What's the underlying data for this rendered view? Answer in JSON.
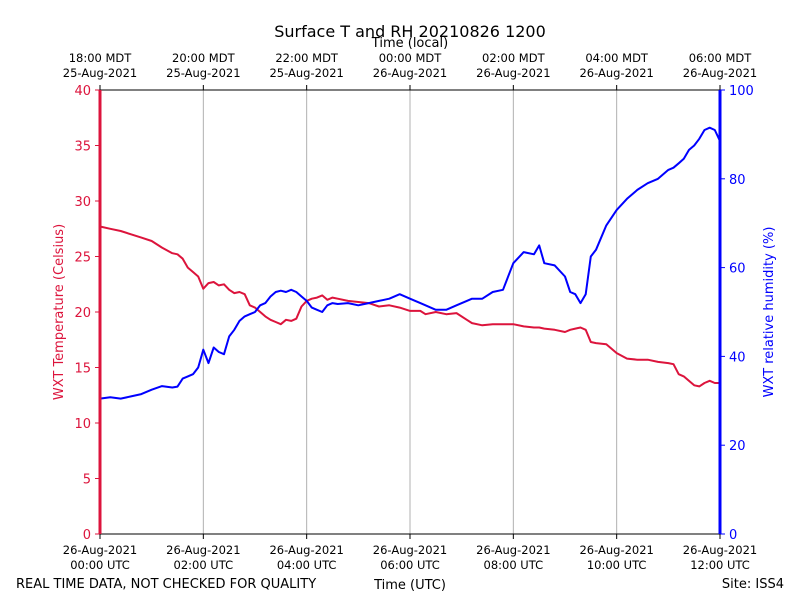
{
  "chart_data": {
    "type": "line",
    "title": "Surface T and RH 20210826 1200",
    "top_axis_title": "Time (local)",
    "xlabel": "Time (UTC)",
    "ylabel_left": "WXT Temperature (Celsius)",
    "ylabel_right": "WXT relative humidity (%)",
    "footer_left": "REAL TIME DATA, NOT CHECKED FOR QUALITY",
    "footer_right": "Site: ISS4",
    "x_range_hours": [
      0,
      12
    ],
    "ylim_left": [
      0,
      40
    ],
    "ylim_right": [
      0,
      100
    ],
    "left_ticks": [
      0,
      5,
      10,
      15,
      20,
      25,
      30,
      35,
      40
    ],
    "right_ticks": [
      0,
      20,
      40,
      60,
      80,
      100
    ],
    "bottom_ticks": [
      {
        "hour": 0,
        "line1": "26-Aug-2021",
        "line2": "00:00 UTC"
      },
      {
        "hour": 2,
        "line1": "26-Aug-2021",
        "line2": "02:00 UTC"
      },
      {
        "hour": 4,
        "line1": "26-Aug-2021",
        "line2": "04:00 UTC"
      },
      {
        "hour": 6,
        "line1": "26-Aug-2021",
        "line2": "06:00 UTC"
      },
      {
        "hour": 8,
        "line1": "26-Aug-2021",
        "line2": "08:00 UTC"
      },
      {
        "hour": 10,
        "line1": "26-Aug-2021",
        "line2": "10:00 UTC"
      },
      {
        "hour": 12,
        "line1": "26-Aug-2021",
        "line2": "12:00 UTC"
      }
    ],
    "top_ticks": [
      {
        "hour": 0,
        "line1": "18:00 MDT",
        "line2": "25-Aug-2021"
      },
      {
        "hour": 2,
        "line1": "20:00 MDT",
        "line2": "25-Aug-2021"
      },
      {
        "hour": 4,
        "line1": "22:00 MDT",
        "line2": "25-Aug-2021"
      },
      {
        "hour": 6,
        "line1": "00:00 MDT",
        "line2": "26-Aug-2021"
      },
      {
        "hour": 8,
        "line1": "02:00 MDT",
        "line2": "26-Aug-2021"
      },
      {
        "hour": 10,
        "line1": "04:00 MDT",
        "line2": "26-Aug-2021"
      },
      {
        "hour": 12,
        "line1": "06:00 MDT",
        "line2": "26-Aug-2021"
      }
    ],
    "grid": "vertical",
    "colors": {
      "temperature": "#dc143c",
      "humidity": "#0000ff",
      "grid": "#b0b0b0"
    },
    "series": [
      {
        "name": "WXT Temperature",
        "axis": "left",
        "points": [
          [
            0,
            27.7
          ],
          [
            0.2,
            27.5
          ],
          [
            0.4,
            27.3
          ],
          [
            0.6,
            27.0
          ],
          [
            0.8,
            26.7
          ],
          [
            1.0,
            26.4
          ],
          [
            1.2,
            25.8
          ],
          [
            1.4,
            25.3
          ],
          [
            1.5,
            25.2
          ],
          [
            1.6,
            24.8
          ],
          [
            1.7,
            24.0
          ],
          [
            1.8,
            23.6
          ],
          [
            1.9,
            23.2
          ],
          [
            2.0,
            22.1
          ],
          [
            2.1,
            22.6
          ],
          [
            2.2,
            22.7
          ],
          [
            2.3,
            22.4
          ],
          [
            2.4,
            22.5
          ],
          [
            2.5,
            22.0
          ],
          [
            2.6,
            21.7
          ],
          [
            2.7,
            21.8
          ],
          [
            2.8,
            21.6
          ],
          [
            2.9,
            20.6
          ],
          [
            3.0,
            20.4
          ],
          [
            3.1,
            20.0
          ],
          [
            3.2,
            19.6
          ],
          [
            3.3,
            19.3
          ],
          [
            3.4,
            19.1
          ],
          [
            3.5,
            18.9
          ],
          [
            3.6,
            19.3
          ],
          [
            3.7,
            19.2
          ],
          [
            3.8,
            19.4
          ],
          [
            3.9,
            20.5
          ],
          [
            4.0,
            21.0
          ],
          [
            4.1,
            21.2
          ],
          [
            4.2,
            21.3
          ],
          [
            4.3,
            21.5
          ],
          [
            4.4,
            21.1
          ],
          [
            4.5,
            21.3
          ],
          [
            4.6,
            21.2
          ],
          [
            4.8,
            21.0
          ],
          [
            5.0,
            20.9
          ],
          [
            5.2,
            20.8
          ],
          [
            5.4,
            20.5
          ],
          [
            5.6,
            20.6
          ],
          [
            5.8,
            20.4
          ],
          [
            6.0,
            20.1
          ],
          [
            6.2,
            20.1
          ],
          [
            6.3,
            19.8
          ],
          [
            6.5,
            20.0
          ],
          [
            6.7,
            19.8
          ],
          [
            6.9,
            19.9
          ],
          [
            7.1,
            19.3
          ],
          [
            7.2,
            19.0
          ],
          [
            7.4,
            18.8
          ],
          [
            7.6,
            18.9
          ],
          [
            7.8,
            18.9
          ],
          [
            8.0,
            18.9
          ],
          [
            8.2,
            18.7
          ],
          [
            8.4,
            18.6
          ],
          [
            8.5,
            18.6
          ],
          [
            8.6,
            18.5
          ],
          [
            8.8,
            18.4
          ],
          [
            9.0,
            18.2
          ],
          [
            9.1,
            18.4
          ],
          [
            9.2,
            18.5
          ],
          [
            9.3,
            18.6
          ],
          [
            9.4,
            18.4
          ],
          [
            9.5,
            17.3
          ],
          [
            9.6,
            17.2
          ],
          [
            9.8,
            17.1
          ],
          [
            10.0,
            16.3
          ],
          [
            10.2,
            15.8
          ],
          [
            10.4,
            15.7
          ],
          [
            10.6,
            15.7
          ],
          [
            10.8,
            15.5
          ],
          [
            11.0,
            15.4
          ],
          [
            11.1,
            15.3
          ],
          [
            11.2,
            14.4
          ],
          [
            11.3,
            14.2
          ],
          [
            11.5,
            13.4
          ],
          [
            11.6,
            13.3
          ],
          [
            11.7,
            13.6
          ],
          [
            11.8,
            13.8
          ],
          [
            11.9,
            13.6
          ],
          [
            12.0,
            13.6
          ]
        ]
      },
      {
        "name": "WXT relative humidity",
        "axis": "right",
        "points": [
          [
            0,
            30.5
          ],
          [
            0.2,
            30.8
          ],
          [
            0.4,
            30.5
          ],
          [
            0.6,
            31.0
          ],
          [
            0.8,
            31.5
          ],
          [
            1.0,
            32.5
          ],
          [
            1.2,
            33.3
          ],
          [
            1.4,
            33.0
          ],
          [
            1.5,
            33.2
          ],
          [
            1.6,
            35.0
          ],
          [
            1.7,
            35.5
          ],
          [
            1.8,
            36.0
          ],
          [
            1.9,
            37.5
          ],
          [
            2.0,
            41.5
          ],
          [
            2.1,
            38.5
          ],
          [
            2.2,
            42.0
          ],
          [
            2.3,
            41.0
          ],
          [
            2.4,
            40.5
          ],
          [
            2.5,
            44.5
          ],
          [
            2.6,
            46.0
          ],
          [
            2.7,
            48.0
          ],
          [
            2.8,
            49.0
          ],
          [
            2.9,
            49.5
          ],
          [
            3.0,
            50.0
          ],
          [
            3.1,
            51.5
          ],
          [
            3.2,
            52.0
          ],
          [
            3.3,
            53.5
          ],
          [
            3.4,
            54.5
          ],
          [
            3.5,
            54.8
          ],
          [
            3.6,
            54.5
          ],
          [
            3.7,
            55.0
          ],
          [
            3.8,
            54.5
          ],
          [
            3.9,
            53.5
          ],
          [
            4.0,
            52.5
          ],
          [
            4.1,
            51.0
          ],
          [
            4.2,
            50.5
          ],
          [
            4.3,
            50.0
          ],
          [
            4.4,
            51.5
          ],
          [
            4.5,
            52.0
          ],
          [
            4.6,
            51.8
          ],
          [
            4.8,
            52.0
          ],
          [
            5.0,
            51.5
          ],
          [
            5.2,
            52.0
          ],
          [
            5.4,
            52.5
          ],
          [
            5.6,
            53.0
          ],
          [
            5.8,
            54.0
          ],
          [
            6.0,
            53.0
          ],
          [
            6.2,
            52.0
          ],
          [
            6.3,
            51.5
          ],
          [
            6.5,
            50.5
          ],
          [
            6.7,
            50.5
          ],
          [
            6.9,
            51.5
          ],
          [
            7.1,
            52.5
          ],
          [
            7.2,
            53.0
          ],
          [
            7.4,
            53.0
          ],
          [
            7.6,
            54.5
          ],
          [
            7.8,
            55.0
          ],
          [
            8.0,
            61.0
          ],
          [
            8.2,
            63.5
          ],
          [
            8.4,
            63.0
          ],
          [
            8.5,
            65.0
          ],
          [
            8.6,
            61.0
          ],
          [
            8.8,
            60.5
          ],
          [
            9.0,
            58.0
          ],
          [
            9.1,
            54.5
          ],
          [
            9.2,
            54.0
          ],
          [
            9.3,
            52.0
          ],
          [
            9.4,
            54.0
          ],
          [
            9.5,
            62.5
          ],
          [
            9.6,
            64.0
          ],
          [
            9.8,
            69.5
          ],
          [
            10.0,
            73.0
          ],
          [
            10.2,
            75.5
          ],
          [
            10.4,
            77.5
          ],
          [
            10.6,
            79.0
          ],
          [
            10.8,
            80.0
          ],
          [
            11.0,
            82.0
          ],
          [
            11.1,
            82.5
          ],
          [
            11.2,
            83.5
          ],
          [
            11.3,
            84.5
          ],
          [
            11.4,
            86.5
          ],
          [
            11.5,
            87.5
          ],
          [
            11.6,
            89.0
          ],
          [
            11.7,
            91.0
          ],
          [
            11.8,
            91.5
          ],
          [
            11.9,
            91.0
          ],
          [
            12.0,
            88.5
          ]
        ]
      }
    ]
  }
}
